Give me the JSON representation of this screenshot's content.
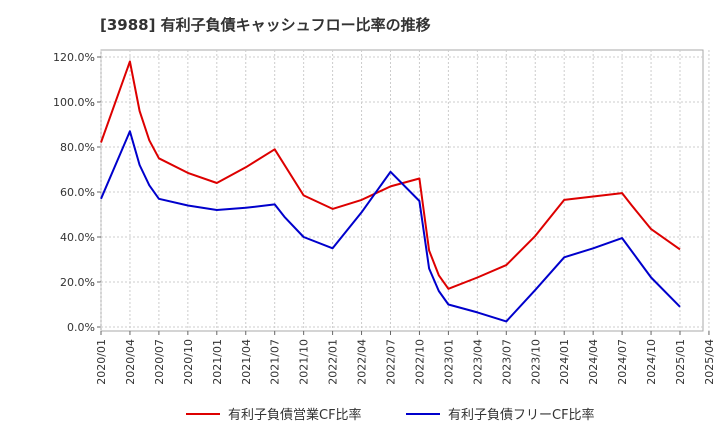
{
  "chart_data": {
    "type": "line",
    "title": "[3988]  有利子負債キャッシュフロー比率の推移",
    "xlabel": "",
    "ylabel": "",
    "ylim": [
      0,
      120
    ],
    "yticks": [
      "0.0%",
      "20.0%",
      "40.0%",
      "60.0%",
      "80.0%",
      "100.0%",
      "120.0%"
    ],
    "xticks": [
      "2020/01",
      "2020/04",
      "2020/07",
      "2020/10",
      "2021/01",
      "2021/04",
      "2021/07",
      "2021/10",
      "2022/01",
      "2022/04",
      "2022/07",
      "2022/10",
      "2023/01",
      "2023/04",
      "2023/07",
      "2023/10",
      "2024/01",
      "2024/04",
      "2024/07",
      "2024/10",
      "2025/01",
      "2025/04"
    ],
    "grid": true,
    "legend_position": "bottom",
    "series": [
      {
        "name": "有利子負債営業CF比率",
        "color": "#dd0000",
        "x": [
          "2020/01",
          "2020/04",
          "2020/05",
          "2020/06",
          "2020/07",
          "2020/10",
          "2021/01",
          "2021/04",
          "2021/07",
          "2021/10",
          "2022/01",
          "2022/04",
          "2022/07",
          "2022/10",
          "2022/11",
          "2022/12",
          "2023/01",
          "2023/04",
          "2023/07",
          "2023/10",
          "2024/01",
          "2024/04",
          "2024/07",
          "2024/08",
          "2024/10",
          "2025/01"
        ],
        "values": [
          82,
          118,
          96,
          83,
          75,
          68.5,
          64,
          71,
          79,
          58.5,
          52.5,
          56.5,
          62.5,
          66,
          34,
          23,
          17,
          22,
          27.5,
          40.5,
          56.5,
          58,
          59.5,
          54,
          43.5,
          34.5
        ]
      },
      {
        "name": "有利子負債フリーCF比率",
        "color": "#0000cc",
        "x": [
          "2020/01",
          "2020/04",
          "2020/05",
          "2020/06",
          "2020/07",
          "2020/10",
          "2021/01",
          "2021/04",
          "2021/07",
          "2021/08",
          "2021/10",
          "2022/01",
          "2022/04",
          "2022/07",
          "2022/10",
          "2022/11",
          "2022/12",
          "2023/01",
          "2023/04",
          "2023/07",
          "2023/10",
          "2024/01",
          "2024/04",
          "2024/07",
          "2024/10",
          "2025/01"
        ],
        "values": [
          57,
          87,
          72,
          63,
          57,
          54,
          52,
          53,
          54.5,
          49,
          40,
          35,
          51,
          69,
          56,
          26,
          16,
          10,
          6.5,
          2.5,
          16.5,
          31,
          35,
          39.5,
          22,
          9
        ]
      }
    ]
  }
}
